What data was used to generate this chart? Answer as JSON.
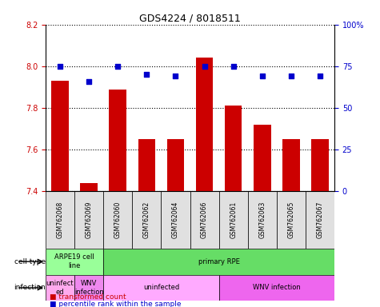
{
  "title": "GDS4224 / 8018511",
  "samples": [
    "GSM762068",
    "GSM762069",
    "GSM762060",
    "GSM762062",
    "GSM762064",
    "GSM762066",
    "GSM762061",
    "GSM762063",
    "GSM762065",
    "GSM762067"
  ],
  "transformed_counts": [
    7.93,
    7.44,
    7.89,
    7.65,
    7.65,
    8.04,
    7.81,
    7.72,
    7.65,
    7.65
  ],
  "percentile_ranks": [
    75,
    66,
    75,
    70,
    69,
    75,
    75,
    69,
    69,
    69
  ],
  "ylim": [
    7.4,
    8.2
  ],
  "yticks": [
    7.4,
    7.6,
    7.8,
    8.0,
    8.2
  ],
  "right_yticks": [
    0,
    25,
    50,
    75,
    100
  ],
  "right_ylim": [
    0,
    100
  ],
  "bar_color": "#cc0000",
  "dot_color": "#0000cc",
  "grid_color": "#000000",
  "left_tick_color": "#cc0000",
  "right_tick_color": "#0000cc",
  "cell_type_colors": {
    "ARPE19 cell line": "#99ff99",
    "primary RPE": "#66dd66"
  },
  "infection_colors": {
    "uninfected_arpe": "#ffaaff",
    "WNV_arpe": "#ff88ff",
    "uninfected": "#ff99ff",
    "WNV infection": "#ee66ee"
  },
  "cell_type_spans": [
    {
      "label": "ARPE19 cell\nline",
      "start": 0,
      "end": 2,
      "color": "#99ff99"
    },
    {
      "label": "primary RPE",
      "start": 2,
      "end": 10,
      "color": "#66dd66"
    }
  ],
  "infection_spans": [
    {
      "label": "uninfect\ned",
      "start": 0,
      "end": 1,
      "color": "#ffaaee"
    },
    {
      "label": "WNV\ninfection",
      "start": 1,
      "end": 2,
      "color": "#ee88ee"
    },
    {
      "label": "uninfected",
      "start": 2,
      "end": 6,
      "color": "#ffaaff"
    },
    {
      "label": "WNV infection",
      "start": 6,
      "end": 10,
      "color": "#ee66ee"
    }
  ],
  "legend_items": [
    {
      "label": "transformed count",
      "color": "#cc0000",
      "marker": "s"
    },
    {
      "label": "percentile rank within the sample",
      "color": "#0000cc",
      "marker": "s"
    }
  ]
}
